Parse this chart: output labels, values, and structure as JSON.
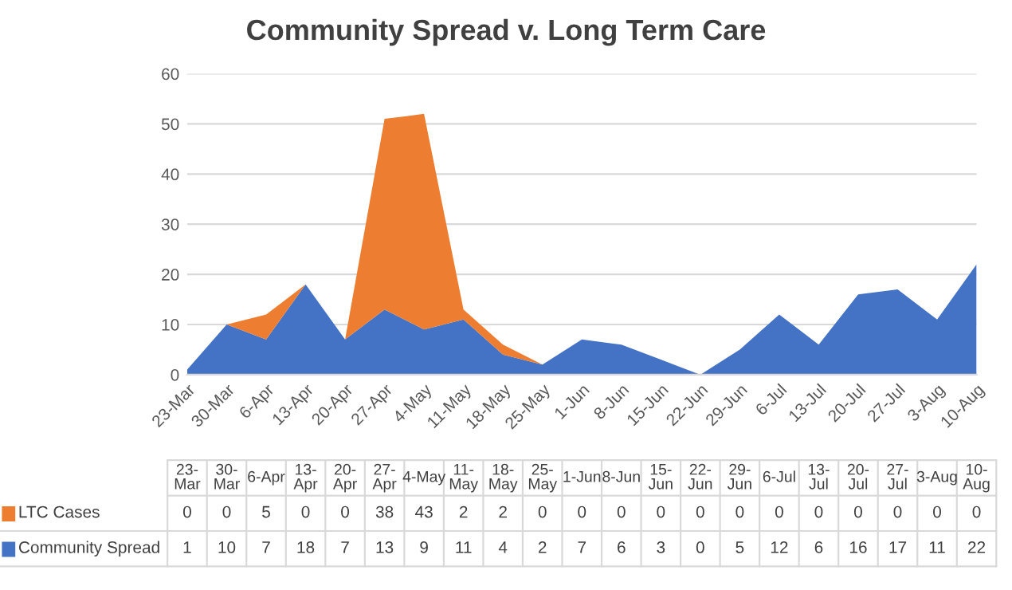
{
  "chart_data": {
    "type": "area",
    "title": "Community Spread v. Long Term Care",
    "stacked": true,
    "categories": [
      "23-Mar",
      "30-Mar",
      "6-Apr",
      "13-Apr",
      "20-Apr",
      "27-Apr",
      "4-May",
      "11-May",
      "18-May",
      "25-May",
      "1-Jun",
      "8-Jun",
      "15-Jun",
      "22-Jun",
      "29-Jun",
      "6-Jul",
      "13-Jul",
      "20-Jul",
      "27-Jul",
      "3-Aug",
      "10-Aug"
    ],
    "series": [
      {
        "name": "Community Spread",
        "color": "#4472c4",
        "values": [
          1,
          10,
          7,
          18,
          7,
          13,
          9,
          11,
          4,
          2,
          7,
          6,
          3,
          0,
          5,
          12,
          6,
          16,
          17,
          11,
          22
        ]
      },
      {
        "name": "LTC Cases",
        "color": "#ed7d31",
        "values": [
          0,
          0,
          5,
          0,
          0,
          38,
          43,
          2,
          2,
          0,
          0,
          0,
          0,
          0,
          0,
          0,
          0,
          0,
          0,
          0,
          0
        ]
      }
    ],
    "ylim": [
      0,
      60
    ],
    "yticks": [
      0,
      10,
      20,
      30,
      40,
      50,
      60
    ],
    "grid": "y",
    "legend": "bottom",
    "data_labels": true
  }
}
